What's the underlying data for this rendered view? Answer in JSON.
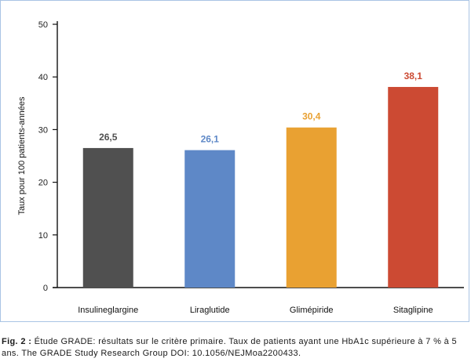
{
  "chart_data": {
    "type": "bar",
    "categories": [
      "Insulineglargine",
      "Liraglutide",
      "Glimépiride",
      "Sitaglipine"
    ],
    "values": [
      26.5,
      26.1,
      30.4,
      38.1
    ],
    "value_labels": [
      "26,5",
      "26,1",
      "30,4",
      "38,1"
    ],
    "colors": [
      "#505050",
      "#5e88c7",
      "#e9a132",
      "#cc4a33"
    ],
    "label_colors": [
      "#505050",
      "#5e88c7",
      "#e9a132",
      "#cc4a33"
    ],
    "ylabel": "Taux pour 100 patients-années",
    "xlabel": "",
    "ylim": [
      0,
      50
    ],
    "yticks": [
      0,
      10,
      20,
      30,
      40,
      50
    ],
    "grid": false
  },
  "caption": {
    "label": "Fig. 2 :",
    "text": "Étude GRADE: résultats sur le critère primaire. Taux de patients ayant une HbA1c supérieure à 7 % à 5 ans. The GRADE Study Research Group DOI: 10.1056/NEJMoa2200433."
  }
}
